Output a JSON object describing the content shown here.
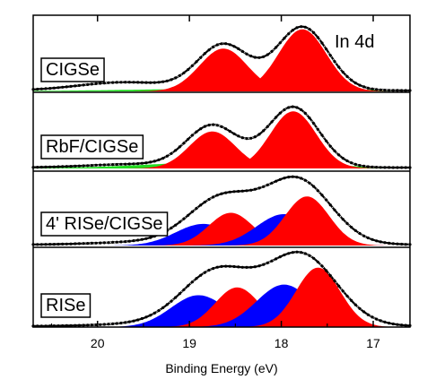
{
  "chart_data": {
    "type": "area",
    "title": "",
    "annotation": "In 4d",
    "xlabel": "Binding Energy (eV)",
    "ylabel": "",
    "xlim": [
      20.7,
      16.6
    ],
    "x_reversed": true,
    "x_ticks": [
      {
        "value": 20,
        "label": "20"
      },
      {
        "value": 19,
        "label": "19"
      },
      {
        "value": 18,
        "label": "18"
      },
      {
        "value": 17,
        "label": "17"
      }
    ],
    "y_ticks_visible": false,
    "colors": {
      "red_component": "#ff0000",
      "blue_component": "#0000ff",
      "green_component": "#22dd22",
      "fit_line": "#ffffff",
      "data_markers": "#000000"
    },
    "panels": [
      {
        "label": "CIGSe",
        "components": [
          {
            "color": "#22dd22",
            "center": 18.3,
            "width": 1.3,
            "amp": 0.04
          },
          {
            "color": "#ff0000",
            "center": 18.63,
            "width": 0.26,
            "amp": 0.62
          },
          {
            "color": "#ff0000",
            "center": 17.77,
            "width": 0.26,
            "amp": 0.9
          }
        ],
        "markers": {
          "center1": 18.63,
          "amp1": 0.66,
          "center2": 17.77,
          "amp2": 0.92,
          "width": 0.28,
          "tail_amp": 0.12,
          "tail_center": 19.7,
          "tail_width": 0.5
        }
      },
      {
        "label": "RbF/CIGSe",
        "components": [
          {
            "color": "#22dd22",
            "center": 18.5,
            "width": 0.9,
            "amp": 0.1
          },
          {
            "color": "#ff0000",
            "center": 18.75,
            "width": 0.25,
            "amp": 0.55
          },
          {
            "color": "#ff0000",
            "center": 17.87,
            "width": 0.25,
            "amp": 0.85
          }
        ],
        "markers": {
          "center1": 18.75,
          "amp1": 0.62,
          "center2": 17.87,
          "amp2": 0.9,
          "width": 0.28,
          "tail_amp": 0.05,
          "tail_center": 19.6,
          "tail_width": 0.5
        }
      },
      {
        "label": "4' RISe/CIGSe",
        "components": [
          {
            "color": "#0000ff",
            "center": 18.85,
            "width": 0.3,
            "amp": 0.33
          },
          {
            "color": "#ff0000",
            "center": 18.55,
            "width": 0.24,
            "amp": 0.5
          },
          {
            "color": "#0000ff",
            "center": 17.97,
            "width": 0.3,
            "amp": 0.48
          },
          {
            "color": "#ff0000",
            "center": 17.72,
            "width": 0.24,
            "amp": 0.75
          }
        ],
        "markers": {
          "center1": 18.65,
          "amp1": 0.7,
          "center2": 17.82,
          "amp2": 0.98,
          "width": 0.36,
          "tail_amp": 0.04,
          "tail_center": 19.5,
          "tail_width": 0.5
        }
      },
      {
        "label": "RISe",
        "components": [
          {
            "color": "#0000ff",
            "center": 18.9,
            "width": 0.3,
            "amp": 0.45
          },
          {
            "color": "#ff0000",
            "center": 18.48,
            "width": 0.24,
            "amp": 0.56
          },
          {
            "color": "#0000ff",
            "center": 17.97,
            "width": 0.3,
            "amp": 0.6
          },
          {
            "color": "#ff0000",
            "center": 17.6,
            "width": 0.24,
            "amp": 0.84
          }
        ],
        "markers": {
          "center1": 18.7,
          "amp1": 0.77,
          "center2": 17.78,
          "amp2": 1.0,
          "width": 0.38,
          "tail_amp": 0.03,
          "tail_center": 19.5,
          "tail_width": 0.5
        }
      }
    ]
  }
}
